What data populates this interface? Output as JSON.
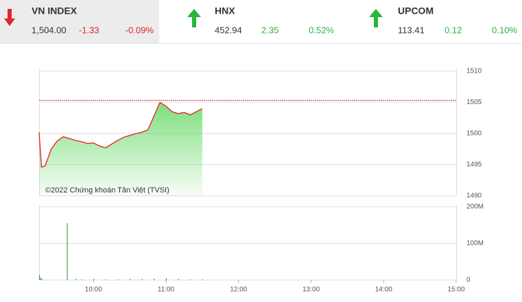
{
  "indices": [
    {
      "name": "VN INDEX",
      "value": "1,504.00",
      "change": "-1.33",
      "percent": "-0.09%"
    },
    {
      "name": "HNX",
      "value": "452.94",
      "change": "2.35",
      "percent": "0.52%"
    },
    {
      "name": "UPCOM",
      "value": "113.41",
      "change": "0.12",
      "percent": "0.10%"
    }
  ],
  "chart_data": [
    {
      "type": "line",
      "annotation": "©2022 Chứng khoán Tân Việt (TVSI)",
      "x": [
        "09:15",
        "09:17",
        "09:20",
        "09:25",
        "09:30",
        "09:35",
        "09:40",
        "09:45",
        "09:50",
        "09:55",
        "10:00",
        "10:05",
        "10:10",
        "10:15",
        "10:20",
        "10:25",
        "10:30",
        "10:35",
        "10:40",
        "10:45",
        "10:50",
        "10:55",
        "11:00",
        "11:05",
        "11:10",
        "11:15",
        "11:20",
        "11:25",
        "11:30"
      ],
      "values": [
        1500.2,
        1494.6,
        1494.8,
        1497.5,
        1498.8,
        1499.5,
        1499.2,
        1498.9,
        1498.7,
        1498.4,
        1498.5,
        1498.0,
        1497.7,
        1498.3,
        1498.9,
        1499.4,
        1499.7,
        1500.0,
        1500.2,
        1500.6,
        1502.8,
        1505.0,
        1504.4,
        1503.5,
        1503.2,
        1503.4,
        1503.0,
        1503.5,
        1504.0
      ],
      "color": "#e8262b",
      "reference": 1505.33,
      "xlim": [
        "09:15",
        "15:00"
      ],
      "ylim": [
        1490,
        1510
      ],
      "yticks": [
        1490,
        1495,
        1500,
        1505,
        1510
      ],
      "grid": true
    },
    {
      "type": "bar",
      "x": [
        "09:15",
        "09:16",
        "09:17",
        "09:38",
        "09:45",
        "09:50",
        "10:00",
        "10:10",
        "10:20",
        "10:30",
        "10:40",
        "10:50",
        "11:00",
        "11:10",
        "11:20",
        "11:30"
      ],
      "values": [
        14000000,
        7000000,
        4000000,
        155000000,
        3000000,
        2000000,
        3000000,
        2000000,
        2000000,
        3000000,
        3000000,
        4000000,
        5000000,
        3000000,
        2000000,
        2000000
      ],
      "color": "#1e8f1e",
      "xlim": [
        "09:15",
        "15:00"
      ],
      "xticks": [
        "10:00",
        "11:00",
        "12:00",
        "13:00",
        "14:00",
        "15:00"
      ],
      "ylim": [
        0,
        200000000
      ],
      "yticks": [
        0,
        {
          "value": 100000000,
          "label": "100M"
        },
        {
          "value": 200000000,
          "label": "200M"
        }
      ],
      "grid": true
    }
  ]
}
